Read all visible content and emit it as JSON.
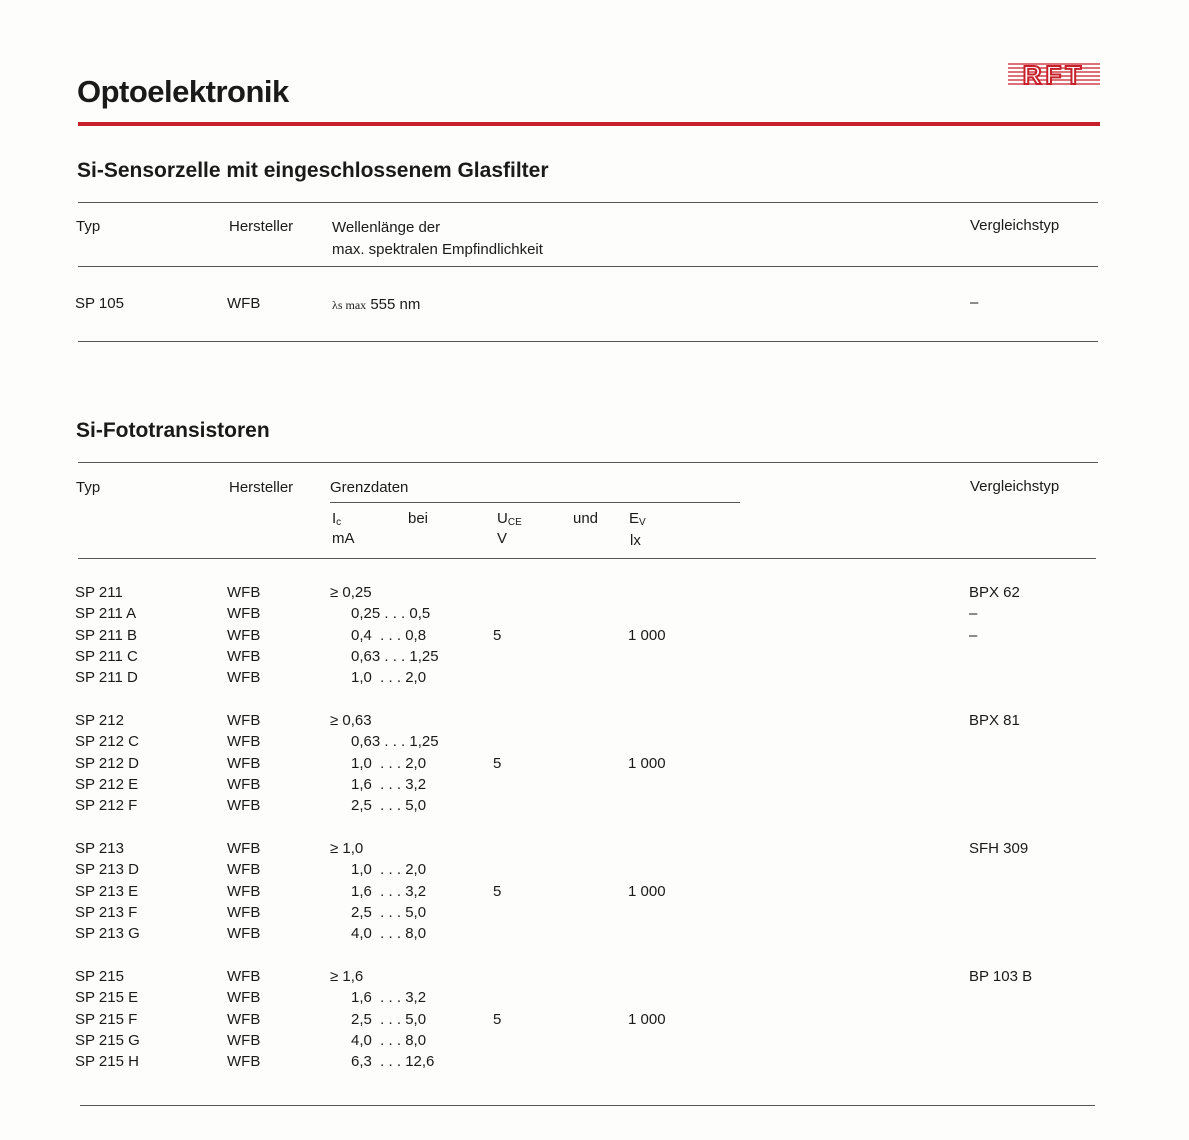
{
  "header": {
    "title": "Optoelektronik",
    "logo_text": "RFT",
    "brand_color": "#c8202a"
  },
  "section1": {
    "heading": "Si-Sensorzelle mit eingeschlossenem Glasfilter",
    "columns": {
      "typ": "Typ",
      "hersteller": "Hersteller",
      "wellenlaenge_line1": "Wellenlänge der",
      "wellenlaenge_line2": "max. spektralen Empfindlichkeit",
      "vergleichstyp": "Vergleichstyp"
    },
    "row": {
      "typ": "SP 105",
      "hersteller": "WFB",
      "lambda_symbol": "λs max",
      "lambda_value": "555 nm",
      "vergleichstyp": "–"
    }
  },
  "section2": {
    "heading": "Si-Fototransistoren",
    "columns": {
      "typ": "Typ",
      "hersteller": "Hersteller",
      "grenzdaten": "Grenzdaten",
      "ic": "I",
      "ic_sub": "c",
      "ic_unit": "mA",
      "bei": "bei",
      "uce": "U",
      "uce_sub": "CE",
      "uce_unit": "V",
      "und": "und",
      "ev": "E",
      "ev_sub": "V",
      "ev_unit": "lx",
      "vergleichstyp": "Vergleichstyp"
    },
    "groups": [
      {
        "uce": "5",
        "ev": "1 000",
        "rows": [
          {
            "typ": "SP 211",
            "hersteller": "WFB",
            "ic": "≥ 0,25",
            "vergleichstyp": "BPX 62"
          },
          {
            "typ": "SP 211 A",
            "hersteller": "WFB",
            "ic": "0,25 . . . 0,5",
            "vergleichstyp": "–"
          },
          {
            "typ": "SP 211 B",
            "hersteller": "WFB",
            "ic": "0,4  . . . 0,8",
            "vergleichstyp": "–"
          },
          {
            "typ": "SP 211 C",
            "hersteller": "WFB",
            "ic": "0,63 . . . 1,25",
            "vergleichstyp": ""
          },
          {
            "typ": "SP 211 D",
            "hersteller": "WFB",
            "ic": "1,0  . . . 2,0",
            "vergleichstyp": ""
          }
        ]
      },
      {
        "uce": "5",
        "ev": "1 000",
        "rows": [
          {
            "typ": "SP 212",
            "hersteller": "WFB",
            "ic": "≥ 0,63",
            "vergleichstyp": "BPX 81"
          },
          {
            "typ": "SP 212 C",
            "hersteller": "WFB",
            "ic": "0,63 . . . 1,25",
            "vergleichstyp": ""
          },
          {
            "typ": "SP 212 D",
            "hersteller": "WFB",
            "ic": "1,0  . . . 2,0",
            "vergleichstyp": ""
          },
          {
            "typ": "SP 212 E",
            "hersteller": "WFB",
            "ic": "1,6  . . . 3,2",
            "vergleichstyp": ""
          },
          {
            "typ": "SP 212 F",
            "hersteller": "WFB",
            "ic": "2,5  . . . 5,0",
            "vergleichstyp": ""
          }
        ]
      },
      {
        "uce": "5",
        "ev": "1 000",
        "rows": [
          {
            "typ": "SP 213",
            "hersteller": "WFB",
            "ic": "≥ 1,0",
            "vergleichstyp": "SFH 309"
          },
          {
            "typ": "SP 213 D",
            "hersteller": "WFB",
            "ic": "1,0  . . . 2,0",
            "vergleichstyp": ""
          },
          {
            "typ": "SP 213 E",
            "hersteller": "WFB",
            "ic": "1,6  . . . 3,2",
            "vergleichstyp": ""
          },
          {
            "typ": "SP 213 F",
            "hersteller": "WFB",
            "ic": "2,5  . . . 5,0",
            "vergleichstyp": ""
          },
          {
            "typ": "SP 213 G",
            "hersteller": "WFB",
            "ic": "4,0  . . . 8,0",
            "vergleichstyp": ""
          }
        ]
      },
      {
        "uce": "5",
        "ev": "1 000",
        "rows": [
          {
            "typ": "SP 215",
            "hersteller": "WFB",
            "ic": "≥ 1,6",
            "vergleichstyp": "BP 103 B"
          },
          {
            "typ": "SP 215 E",
            "hersteller": "WFB",
            "ic": "1,6  . . . 3,2",
            "vergleichstyp": ""
          },
          {
            "typ": "SP 215 F",
            "hersteller": "WFB",
            "ic": "2,5  . . . 5,0",
            "vergleichstyp": ""
          },
          {
            "typ": "SP 215 G",
            "hersteller": "WFB",
            "ic": "4,0  . . . 8,0",
            "vergleichstyp": ""
          },
          {
            "typ": "SP 215 H",
            "hersteller": "WFB",
            "ic": "6,3  . . . 12,6",
            "vergleichstyp": ""
          }
        ]
      }
    ]
  }
}
